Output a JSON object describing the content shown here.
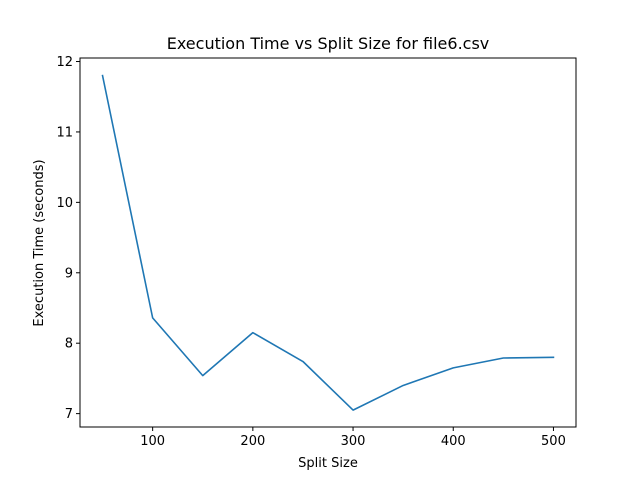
{
  "chart_data": {
    "type": "line",
    "title": "Execution Time vs Split Size for file6.csv",
    "xlabel": "Split Size",
    "ylabel": "Execution Time (seconds)",
    "xlim": [
      27.5,
      522.5
    ],
    "ylim": [
      6.81,
      12.05
    ],
    "xticks": [
      100,
      200,
      300,
      400,
      500
    ],
    "yticks": [
      7,
      8,
      9,
      10,
      11,
      12
    ],
    "grid": false,
    "series": [
      {
        "color": "#1f77b4",
        "x": [
          50,
          100,
          150,
          200,
          250,
          300,
          350,
          400,
          450,
          500
        ],
        "y": [
          11.8,
          8.36,
          7.54,
          8.15,
          7.74,
          7.05,
          7.4,
          7.65,
          7.79,
          7.8
        ]
      }
    ]
  }
}
